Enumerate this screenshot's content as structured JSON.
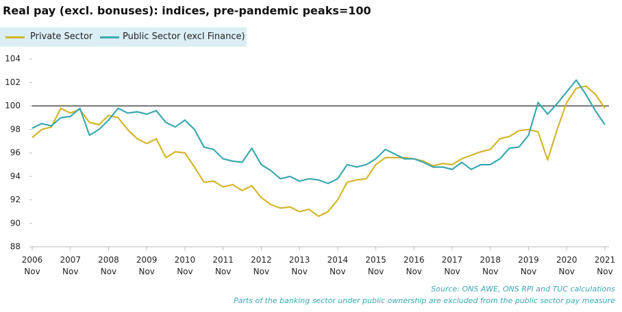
{
  "chart_data": {
    "type": "line",
    "title": "Real pay (excl. bonuses): indices, pre-pandemic peaks=100",
    "source": "Source: ONS AWE, ONS RPI and TUC calculations",
    "note": "Parts of the banking sector under public ownership are excluded from the public sector pay measure",
    "categories": [
      "2006\nNov",
      null,
      null,
      null,
      "2007\nNov",
      null,
      null,
      null,
      "2008\nNov",
      null,
      null,
      null,
      "2009\nNov",
      null,
      null,
      null,
      "2010\nNov",
      null,
      null,
      null,
      "2011\nNov",
      null,
      null,
      null,
      "2012\nNov",
      null,
      null,
      null,
      "2013\nNov",
      null,
      null,
      null,
      "2014\nNov",
      null,
      null,
      null,
      "2015\nNov",
      null,
      null,
      null,
      "2016\nNov",
      null,
      null,
      null,
      "2017\nNov",
      null,
      null,
      null,
      "2018\nNov",
      null,
      null,
      null,
      "2019\nNov",
      null,
      null,
      null,
      "2020\nNov",
      null,
      null,
      null,
      "2021\nNov"
    ],
    "series": [
      {
        "name": "Private Sector",
        "color": "#d4b52a",
        "values": [
          97.3,
          98.0,
          98.2,
          99.8,
          99.4,
          99.7,
          98.6,
          98.4,
          99.2,
          99.0,
          98.0,
          97.2,
          96.8,
          97.2,
          95.6,
          96.1,
          96.0,
          94.8,
          93.5,
          93.6,
          93.1,
          93.3,
          92.8,
          93.2,
          92.2,
          91.6,
          91.3,
          91.4,
          91.0,
          91.2,
          90.6,
          91.0,
          92.0,
          93.5,
          93.7,
          93.8,
          95.0,
          95.6,
          95.6,
          95.6,
          95.5,
          95.3,
          94.9,
          95.1,
          95.0,
          95.5,
          95.8,
          96.1,
          96.3,
          97.2,
          97.4,
          97.9,
          98.0,
          97.8,
          95.4,
          98.0,
          100.3,
          101.5,
          101.7,
          101.0,
          99.8
        ]
      },
      {
        "name": "Public Sector (excl Finance)",
        "color": "#3aa8b0",
        "values": [
          98.1,
          98.5,
          98.3,
          99.0,
          99.1,
          99.8,
          97.5,
          98.0,
          98.8,
          99.8,
          99.4,
          99.5,
          99.3,
          99.6,
          98.6,
          98.2,
          98.8,
          98.0,
          96.5,
          96.3,
          95.5,
          95.3,
          95.2,
          96.4,
          95.0,
          94.5,
          93.8,
          94.0,
          93.6,
          93.8,
          93.7,
          93.4,
          93.8,
          95.0,
          94.8,
          95.0,
          95.5,
          96.3,
          95.9,
          95.5,
          95.5,
          95.2,
          94.8,
          94.8,
          94.6,
          95.2,
          94.6,
          95.0,
          95.0,
          95.5,
          96.4,
          96.5,
          97.5,
          100.3,
          99.3,
          100.2,
          101.2,
          102.2,
          101.0,
          99.6,
          98.4
        ]
      }
    ],
    "ylim": [
      88,
      104
    ],
    "yticks": [
      88,
      90,
      92,
      94,
      96,
      98,
      100,
      102,
      104
    ],
    "reference_line": 100,
    "grid": false
  }
}
